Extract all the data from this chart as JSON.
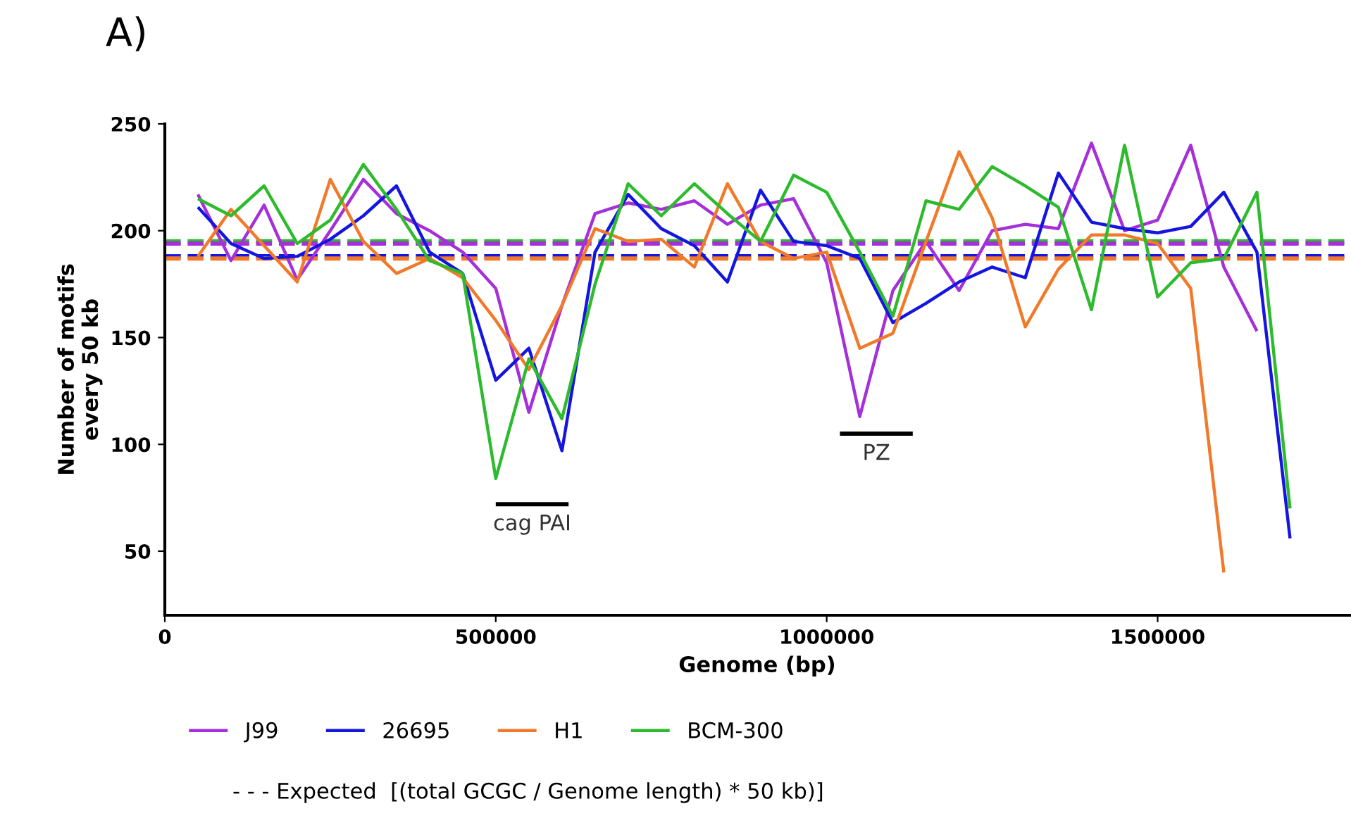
{
  "chart_data": {
    "type": "line",
    "title": "A)",
    "xlabel": "Genome (bp)",
    "ylabel": "Number of motifs\nevery 50 kb",
    "x": [
      50000,
      100000,
      150000,
      200000,
      250000,
      300000,
      350000,
      400000,
      450000,
      500000,
      550000,
      600000,
      650000,
      700000,
      750000,
      800000,
      850000,
      900000,
      950000,
      1000000,
      1050000,
      1100000,
      1150000,
      1200000,
      1250000,
      1300000,
      1350000,
      1400000,
      1450000,
      1500000,
      1550000,
      1600000,
      1650000,
      1700000
    ],
    "series": [
      {
        "name": "J99",
        "color": "#a52fd8",
        "values": [
          217,
          186,
          212,
          177,
          200,
          224,
          208,
          200,
          190,
          173,
          115,
          165,
          208,
          213,
          210,
          214,
          203,
          212,
          215,
          185,
          113,
          172,
          195,
          172,
          200,
          203,
          201,
          241,
          200,
          205,
          240,
          183,
          153,
          null
        ]
      },
      {
        "name": "26695",
        "color": "#1515e0",
        "values": [
          211,
          194,
          187,
          188,
          196,
          207,
          221,
          190,
          180,
          130,
          145,
          97,
          190,
          217,
          201,
          193,
          176,
          219,
          195,
          193,
          187,
          157,
          166,
          176,
          183,
          178,
          227,
          204,
          201,
          199,
          202,
          218,
          190,
          56
        ]
      },
      {
        "name": "H1",
        "color": "#f07a2a",
        "values": [
          188,
          210,
          193,
          176,
          224,
          195,
          180,
          187,
          178,
          158,
          135,
          165,
          201,
          195,
          196,
          183,
          222,
          195,
          187,
          190,
          145,
          152,
          195,
          237,
          206,
          155,
          182,
          198,
          198,
          194,
          173,
          40,
          null,
          null
        ]
      },
      {
        "name": "BCM-300",
        "color": "#2dbb2d",
        "values": [
          215,
          207,
          221,
          194,
          205,
          231,
          210,
          186,
          180,
          84,
          140,
          112,
          175,
          222,
          207,
          222,
          208,
          195,
          226,
          218,
          190,
          160,
          214,
          210,
          230,
          221,
          211,
          163,
          240,
          169,
          185,
          187,
          218,
          70
        ]
      },
      {
        "color": "#000000",
        "x": [
          500000,
          610000
        ],
        "values": [
          72,
          72
        ]
      },
      {
        "color": "#000000",
        "x": [
          1020000,
          1130000
        ],
        "values": [
          105,
          105
        ]
      }
    ],
    "ref_lines": [
      {
        "axis": "y",
        "value": 195,
        "color": "#2dbb2d",
        "line_style": "dashed"
      },
      {
        "axis": "y",
        "value": 194,
        "color": "#a52fd8",
        "line_style": "dashed"
      },
      {
        "axis": "y",
        "value": 188,
        "color": "#1515e0",
        "line_style": "dashed"
      },
      {
        "axis": "y",
        "value": 187,
        "color": "#f07a2a",
        "line_style": "dashed"
      }
    ],
    "annotations": [
      {
        "text": "cag PAI",
        "x": 555000,
        "y": 72
      },
      {
        "text": "PZ",
        "x": 1075000,
        "y": 105
      },
      "- - - Expected  [(total GCGC / Genome length) * 50 kb)]"
    ],
    "xlim": [
      0,
      1790000
    ],
    "ylim": [
      20,
      250
    ],
    "xticks": [
      0,
      500000,
      1000000,
      1500000
    ],
    "yticks": [
      50,
      100,
      150,
      200,
      250
    ],
    "grid": false,
    "legend": "bottom",
    "marker": "none",
    "line_style": "solid"
  }
}
